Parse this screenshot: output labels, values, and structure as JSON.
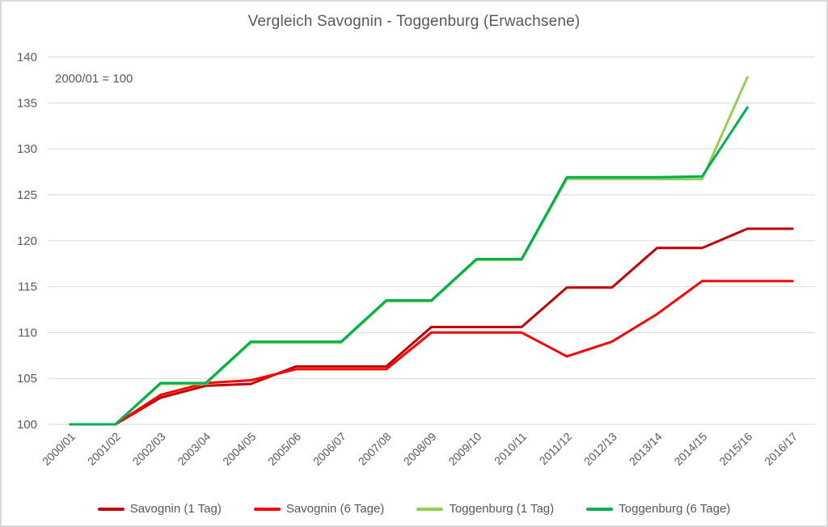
{
  "chart_data": {
    "type": "line",
    "title": "Vergleich Savognin - Toggenburg (Erwachsene)",
    "annotation": "2000/01 = 100",
    "categories": [
      "2000/01",
      "2001/02",
      "2002/03",
      "2003/04",
      "2004/05",
      "2005/06",
      "2006/07",
      "2007/08",
      "2008/09",
      "2009/10",
      "2010/11",
      "2011/12",
      "2012/13",
      "2013/14",
      "2014/15",
      "2015/16",
      "2016/17"
    ],
    "series": [
      {
        "name": "Savognin (1 Tag)",
        "color": "#C00000",
        "values": [
          100,
          100,
          102.9,
          104.2,
          104.4,
          106.3,
          106.3,
          106.3,
          110.6,
          110.6,
          110.6,
          114.9,
          114.9,
          119.2,
          119.2,
          121.3,
          121.3
        ]
      },
      {
        "name": "Savognin (6 Tage)",
        "color": "#FF0000",
        "values": [
          100,
          100,
          103.2,
          104.5,
          104.8,
          106.0,
          106.0,
          106.0,
          110.0,
          110.0,
          110.0,
          107.4,
          109.0,
          112.0,
          115.6,
          115.6,
          115.6
        ]
      },
      {
        "name": "Toggenburg (1 Tag)",
        "color": "#92D050",
        "values": [
          100,
          100,
          104.4,
          104.4,
          108.9,
          108.9,
          108.9,
          113.4,
          113.4,
          117.9,
          117.9,
          126.7,
          126.7,
          126.7,
          126.7,
          137.8,
          null
        ]
      },
      {
        "name": "Toggenburg (6 Tage)",
        "color": "#00B050",
        "values": [
          100,
          100,
          104.5,
          104.5,
          109.0,
          109.0,
          109.0,
          113.5,
          113.5,
          118.0,
          118.0,
          126.9,
          126.9,
          126.9,
          127.0,
          134.5,
          null
        ]
      }
    ],
    "ylim": [
      100,
      140
    ],
    "yticks": [
      100,
      105,
      110,
      115,
      120,
      125,
      130,
      135,
      140
    ],
    "grid": true,
    "legend_position": "bottom",
    "colors": {
      "text": "#595959",
      "grid": "#D9D9D9",
      "frame_border": "#D9D9D9",
      "background": "#FFFFFF"
    }
  }
}
